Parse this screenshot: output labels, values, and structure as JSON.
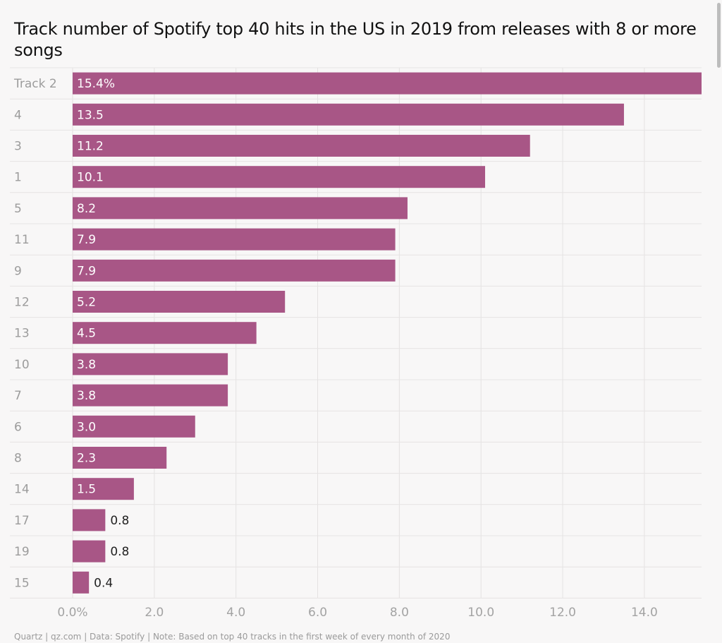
{
  "chart_data": {
    "type": "bar",
    "orientation": "horizontal",
    "title": "Track number of Spotify top 40 hits in the US in 2019 from releases with 8 or more songs",
    "categories": [
      "Track 2",
      "4",
      "3",
      "1",
      "5",
      "11",
      "9",
      "12",
      "13",
      "10",
      "7",
      "6",
      "8",
      "14",
      "17",
      "19",
      "15"
    ],
    "values": [
      15.4,
      13.5,
      11.2,
      10.1,
      8.2,
      7.9,
      7.9,
      5.2,
      4.5,
      3.8,
      3.8,
      3.0,
      2.3,
      1.5,
      0.8,
      0.8,
      0.4
    ],
    "value_labels": [
      "15.4%",
      "13.5",
      "11.2",
      "10.1",
      "8.2",
      "7.9",
      "7.9",
      "5.2",
      "4.5",
      "3.8",
      "3.8",
      "3.0",
      "2.3",
      "1.5",
      "0.8",
      "0.8",
      "0.4"
    ],
    "x_ticks": [
      0,
      2,
      4,
      6,
      8,
      10,
      12,
      14
    ],
    "x_tick_labels": [
      "0.0%",
      "2.0",
      "4.0",
      "6.0",
      "8.0",
      "10.0",
      "12.0",
      "14.0"
    ],
    "xlim": [
      0,
      15.4
    ],
    "grid": true,
    "bar_color": "#a85686"
  },
  "footer": "Quartz | qz.com | Data: Spotify | Note: Based on top 40 tracks in the first week of every month of 2020"
}
